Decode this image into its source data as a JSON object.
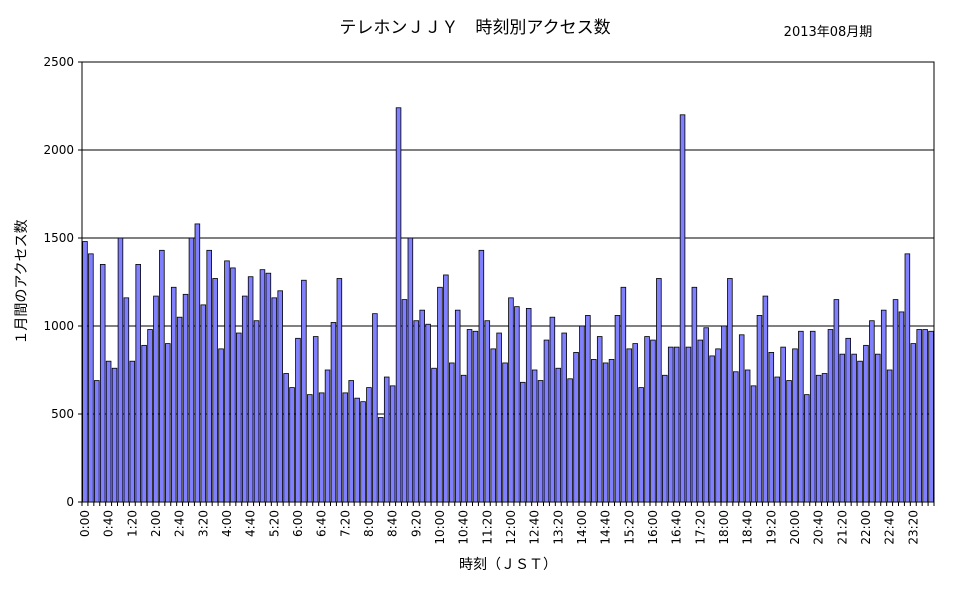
{
  "chart_data": {
    "type": "bar",
    "title": "テレホンＪＪＹ　時刻別アクセス数",
    "subtitle": "2013年08月期",
    "xlabel": "時刻（ＪＳＴ）",
    "ylabel": "１月間のアクセス数",
    "ylim": [
      0,
      2500
    ],
    "yticks": [
      0,
      500,
      1000,
      1500,
      2000,
      2500
    ],
    "grid": "horizontal",
    "bar_color": "#8080ff",
    "x_tick_labels": [
      "0:00",
      "0:40",
      "1:20",
      "2:00",
      "2:40",
      "3:20",
      "4:00",
      "4:40",
      "5:20",
      "6:00",
      "6:40",
      "7:20",
      "8:00",
      "8:40",
      "9:20",
      "10:00",
      "10:40",
      "11:20",
      "12:00",
      "12:40",
      "13:20",
      "14:00",
      "14:40",
      "15:20",
      "16:00",
      "16:40",
      "17:20",
      "18:00",
      "18:40",
      "19:20",
      "20:00",
      "20:40",
      "21:20",
      "22:00",
      "22:40",
      "23:20"
    ],
    "x_tick_every": 4,
    "interval_minutes": 10,
    "values": [
      1480,
      1410,
      690,
      1350,
      800,
      760,
      1500,
      1160,
      800,
      1350,
      890,
      980,
      1170,
      1430,
      900,
      1220,
      1050,
      1180,
      1500,
      1580,
      1120,
      1430,
      1270,
      870,
      1370,
      1330,
      960,
      1170,
      1280,
      1030,
      1320,
      1300,
      1160,
      1200,
      730,
      650,
      930,
      1260,
      610,
      940,
      620,
      750,
      1020,
      1270,
      620,
      690,
      590,
      570,
      650,
      1070,
      480,
      710,
      660,
      2240,
      1150,
      1500,
      1030,
      1090,
      1010,
      760,
      1220,
      1290,
      790,
      1090,
      720,
      980,
      970,
      1430,
      1030,
      870,
      960,
      790,
      1160,
      1110,
      680,
      1100,
      750,
      690,
      920,
      1050,
      760,
      960,
      700,
      850,
      1000,
      1060,
      810,
      940,
      790,
      810,
      1060,
      1220,
      870,
      900,
      650,
      940,
      920,
      1270,
      720,
      880,
      880,
      2200,
      880,
      1220,
      920,
      990,
      830,
      870,
      1000,
      1270,
      740,
      950,
      750,
      660,
      1060,
      1170,
      850,
      710,
      880,
      690,
      870,
      970,
      610,
      970,
      720,
      730,
      980,
      1150,
      840,
      930,
      840,
      800,
      890,
      1030,
      840,
      1090,
      750,
      1150,
      1080,
      1410,
      900,
      980,
      980,
      970
    ]
  }
}
